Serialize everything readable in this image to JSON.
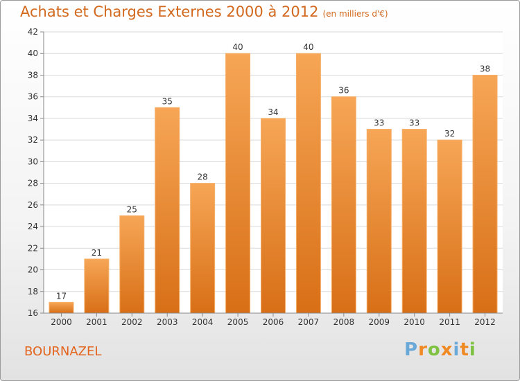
{
  "title": "Achats et Charges Externes 2000 à 2012",
  "subtitle": "(en milliers d'€)",
  "location": "BOURNAZEL",
  "brand": "Proxiti",
  "colors": {
    "bar_top": "#f6a656",
    "bar_bottom": "#d86f17",
    "title": "#d2691e"
  },
  "chart_data": {
    "type": "bar",
    "categories": [
      "2000",
      "2001",
      "2002",
      "2003",
      "2004",
      "2005",
      "2006",
      "2007",
      "2008",
      "2009",
      "2010",
      "2011",
      "2012"
    ],
    "values": [
      17,
      21,
      25,
      35,
      28,
      40,
      34,
      40,
      36,
      33,
      33,
      32,
      38
    ],
    "ylim": [
      16,
      42
    ],
    "yticks": [
      16,
      18,
      20,
      22,
      24,
      26,
      28,
      30,
      32,
      34,
      36,
      38,
      40,
      42
    ],
    "grid": true,
    "xlabel": "",
    "ylabel": ""
  }
}
